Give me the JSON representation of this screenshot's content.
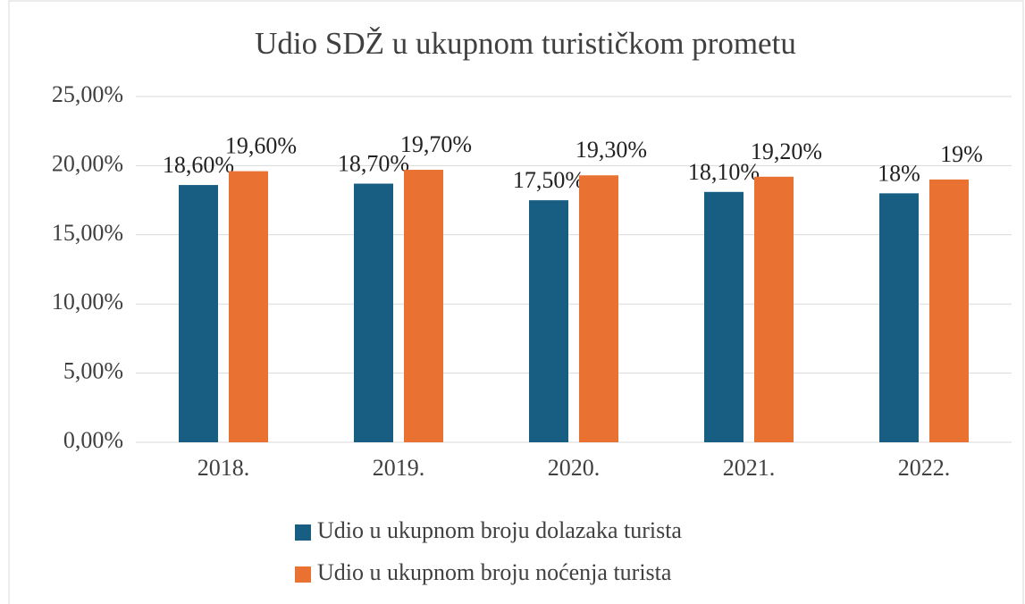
{
  "chart_data": {
    "type": "bar",
    "title": "Udio SDŽ u ukupnom turističkom prometu",
    "categories": [
      "2018.",
      "2019.",
      "2020.",
      "2021.",
      "2022."
    ],
    "series": [
      {
        "name": "Udio u ukupnom broju dolazaka turista",
        "color": "#175e82",
        "values": [
          18.6,
          18.7,
          17.5,
          18.1,
          18
        ],
        "value_labels": [
          "18,60%",
          "18,70%",
          "17,50%",
          "18,10%",
          "18%"
        ]
      },
      {
        "name": "Udio u ukupnom broju noćenja turista",
        "color": "#e97132",
        "values": [
          19.6,
          19.7,
          19.3,
          19.2,
          19
        ],
        "value_labels": [
          "19,60%",
          "19,70%",
          "19,30%",
          "19,20%",
          "19%"
        ]
      }
    ],
    "ylim": [
      0,
      25
    ],
    "yticks": [
      {
        "value": 0,
        "label": "0,00%"
      },
      {
        "value": 5,
        "label": "5,00%"
      },
      {
        "value": 10,
        "label": "10,00%"
      },
      {
        "value": 15,
        "label": "15,00%"
      },
      {
        "value": 20,
        "label": "20,00%"
      },
      {
        "value": 25,
        "label": "25,00%"
      }
    ],
    "grid": true,
    "legend": "bottom"
  }
}
